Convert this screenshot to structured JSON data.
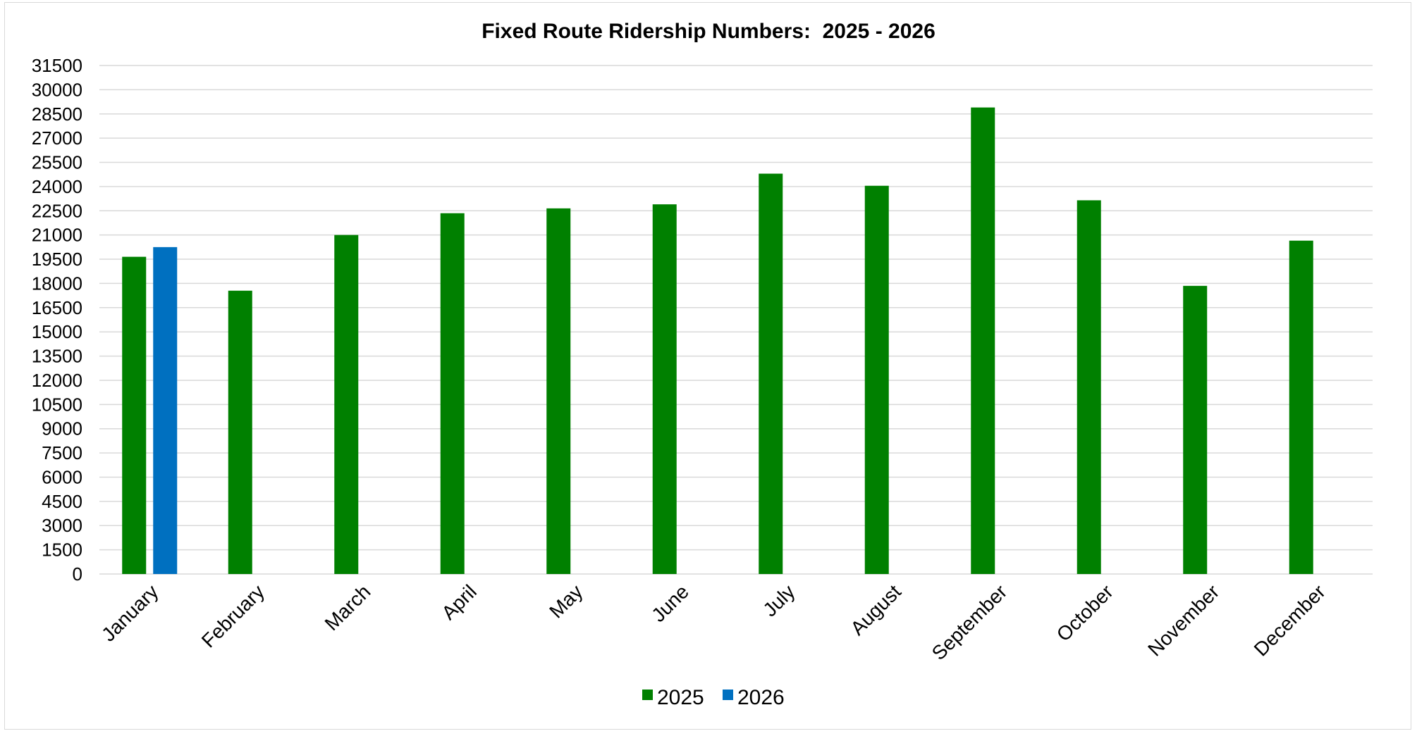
{
  "chart_data": {
    "type": "bar",
    "title": "Fixed Route Ridership Numbers:  2025 - 2026",
    "xlabel": "",
    "ylabel": "",
    "ylim": [
      0,
      31500
    ],
    "yticks": [
      0,
      1500,
      3000,
      4500,
      6000,
      7500,
      9000,
      10500,
      12000,
      13500,
      15000,
      16500,
      18000,
      19500,
      21000,
      22500,
      24000,
      25500,
      27000,
      28500,
      30000,
      31500
    ],
    "grid": true,
    "legend_position": "bottom",
    "categories": [
      "January",
      "February",
      "March",
      "April",
      "May",
      "June",
      "July",
      "August",
      "September",
      "October",
      "November",
      "December"
    ],
    "series": [
      {
        "name": "2025",
        "color": "#008000",
        "values": [
          19650,
          17550,
          21000,
          22350,
          22650,
          22900,
          24800,
          24050,
          28900,
          23150,
          17850,
          20650
        ]
      },
      {
        "name": "2026",
        "color": "#0070c0",
        "values": [
          20250,
          null,
          null,
          null,
          null,
          null,
          null,
          null,
          null,
          null,
          null,
          null
        ]
      }
    ]
  }
}
